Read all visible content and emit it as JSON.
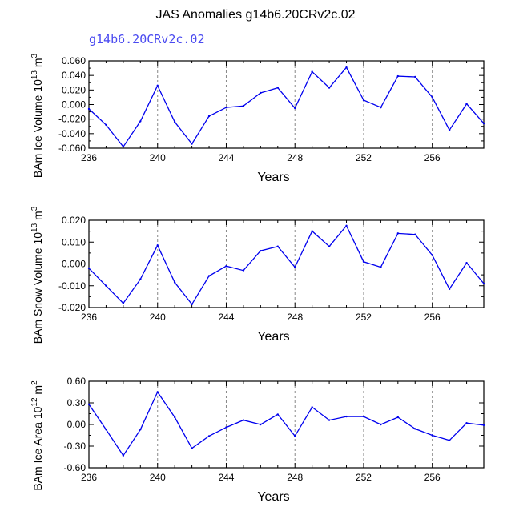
{
  "title": "JAS Anomalies g14b6.20CRv2c.02",
  "subtitle": "g14b6.20CRv2c.02",
  "line_color": "#0000ee",
  "chart_data": [
    {
      "type": "line",
      "ylabel": "BAm Ice Volume 10^13 m^3",
      "ylabel_base": "BAm Ice Volume 10",
      "ylabel_exp1": "13",
      "ylabel_mid": " m",
      "ylabel_exp2": "3",
      "xlabel": "Years",
      "x": [
        236,
        237,
        238,
        239,
        240,
        241,
        242,
        243,
        244,
        245,
        246,
        247,
        248,
        249,
        250,
        251,
        252,
        253,
        254,
        255,
        256,
        257,
        258,
        259
      ],
      "values": [
        -0.006,
        -0.028,
        -0.058,
        -0.023,
        0.026,
        -0.024,
        -0.054,
        -0.016,
        -0.004,
        -0.002,
        0.016,
        0.023,
        -0.005,
        0.045,
        0.023,
        0.051,
        0.006,
        -0.004,
        0.039,
        0.038,
        0.01,
        -0.035,
        0.001,
        -0.026
      ],
      "xlim": [
        236,
        259
      ],
      "ylim": [
        -0.06,
        0.06
      ],
      "yticks": [
        -0.06,
        -0.04,
        -0.02,
        0.0,
        0.02,
        0.04,
        0.06
      ],
      "yticklabels": [
        "-0.060",
        "-0.040",
        "-0.020",
        "0.000",
        "0.020",
        "0.040",
        "0.060"
      ],
      "xticks": [
        236,
        240,
        244,
        248,
        252,
        256
      ],
      "xticklabels": [
        "236",
        "240",
        "244",
        "248",
        "252",
        "256"
      ],
      "gridx": [
        240,
        244,
        248,
        252,
        256
      ]
    },
    {
      "type": "line",
      "ylabel": "BAm Snow Volume 10^13 m^3",
      "ylabel_base": "BAm Snow Volume 10",
      "ylabel_exp1": "13",
      "ylabel_mid": " m",
      "ylabel_exp2": "3",
      "xlabel": "Years",
      "x": [
        236,
        237,
        238,
        239,
        240,
        241,
        242,
        243,
        244,
        245,
        246,
        247,
        248,
        249,
        250,
        251,
        252,
        253,
        254,
        255,
        256,
        257,
        258,
        259
      ],
      "values": [
        -0.002,
        -0.01,
        -0.018,
        -0.007,
        0.0085,
        -0.0085,
        -0.0185,
        -0.0055,
        -0.001,
        -0.003,
        0.006,
        0.008,
        -0.0015,
        0.015,
        0.008,
        0.0175,
        0.001,
        -0.0015,
        0.014,
        0.0135,
        0.004,
        -0.0115,
        0.0005,
        -0.009
      ],
      "xlim": [
        236,
        259
      ],
      "ylim": [
        -0.02,
        0.02
      ],
      "yticks": [
        -0.02,
        -0.01,
        0.0,
        0.01,
        0.02
      ],
      "yticklabels": [
        "-0.020",
        "-0.010",
        "0.000",
        "0.010",
        "0.020"
      ],
      "xticks": [
        236,
        240,
        244,
        248,
        252,
        256
      ],
      "xticklabels": [
        "236",
        "240",
        "244",
        "248",
        "252",
        "256"
      ],
      "gridx": [
        240,
        244,
        248,
        252,
        256
      ]
    },
    {
      "type": "line",
      "ylabel": "BAm Ice Area 10^12 m^2",
      "ylabel_base": "BAm Ice Area 10",
      "ylabel_exp1": "12",
      "ylabel_mid": " m",
      "ylabel_exp2": "2",
      "xlabel": "Years",
      "x": [
        236,
        237,
        238,
        239,
        240,
        241,
        242,
        243,
        244,
        245,
        246,
        247,
        248,
        249,
        250,
        251,
        252,
        253,
        254,
        255,
        256,
        257,
        258,
        259
      ],
      "values": [
        0.28,
        -0.07,
        -0.43,
        -0.07,
        0.45,
        0.1,
        -0.33,
        -0.16,
        -0.04,
        0.06,
        0.0,
        0.14,
        -0.16,
        0.24,
        0.06,
        0.11,
        0.11,
        0.0,
        0.1,
        -0.06,
        -0.15,
        -0.22,
        0.02,
        -0.01
      ],
      "xlim": [
        236,
        259
      ],
      "ylim": [
        -0.6,
        0.6
      ],
      "yticks": [
        -0.6,
        -0.3,
        0.0,
        0.3,
        0.6
      ],
      "yticklabels": [
        "-0.60",
        "-0.30",
        "0.00",
        "0.30",
        "0.60"
      ],
      "xticks": [
        236,
        240,
        244,
        248,
        252,
        256
      ],
      "xticklabels": [
        "236",
        "240",
        "244",
        "248",
        "252",
        "256"
      ],
      "gridx": [
        240,
        244,
        248,
        252,
        256
      ]
    }
  ]
}
